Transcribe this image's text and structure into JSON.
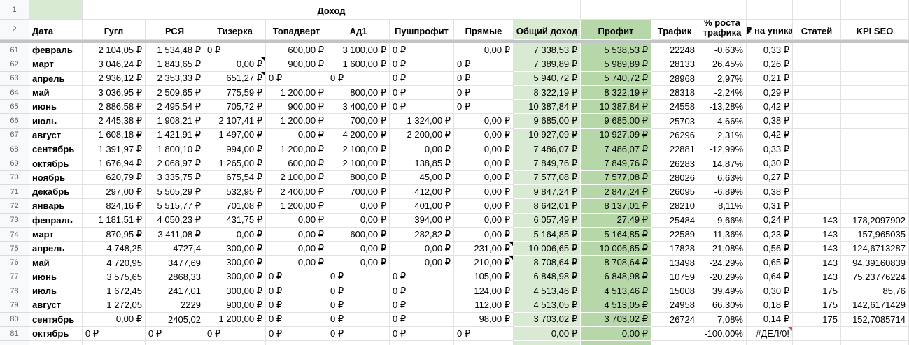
{
  "gutter": {
    "r1": "1",
    "r2": "2"
  },
  "title_row": {
    "income_group_label": "Доход"
  },
  "colors": {
    "total_income_bg": "#d9ead3",
    "profit_bg": "#b6d7a8",
    "note_marker": "#000000",
    "error_note_marker": "#dc4c3f"
  },
  "columns": [
    {
      "id": "data",
      "label": "Дата"
    },
    {
      "id": "google",
      "label": "Гугл"
    },
    {
      "id": "rsya",
      "label": "РСЯ"
    },
    {
      "id": "tizerka",
      "label": "Тизерка"
    },
    {
      "id": "topadvert",
      "label": "Топадверт"
    },
    {
      "id": "ad1",
      "label": "Ад1"
    },
    {
      "id": "pushprofit",
      "label": "Пушпрофит"
    },
    {
      "id": "pryamye",
      "label": "Прямые"
    },
    {
      "id": "obshiy-dohod",
      "label": "Общий доход"
    },
    {
      "id": "profit",
      "label": "Профит"
    },
    {
      "id": "trafik",
      "label": "Трафик"
    },
    {
      "id": "rost-trafika",
      "label": "% роста трафика"
    },
    {
      "id": "rub-na-unika",
      "label": "₽ на уника"
    },
    {
      "id": "statey",
      "label": "Статей"
    },
    {
      "id": "kpi-seo",
      "label": "KPI SEO"
    }
  ],
  "rows": [
    {
      "num": "61",
      "cells": [
        "февраль",
        "2 104,05 ₽",
        "1 534,48 ₽",
        {
          "v": "0 ₽",
          "align": "left"
        },
        "600,00 ₽",
        "3 100,00 ₽",
        {
          "v": "0 ₽",
          "align": "left"
        },
        "0,00 ₽",
        "7 338,53 ₽",
        "5 538,53 ₽",
        "22248",
        "-0,63%",
        "0,33 ₽",
        "",
        ""
      ]
    },
    {
      "num": "62",
      "cells": [
        "март",
        "3 046,24 ₽",
        "1 843,65 ₽",
        {
          "v": "0,00 ₽",
          "note": "black"
        },
        "900,00 ₽",
        "1 600,00 ₽",
        {
          "v": "0 ₽",
          "align": "left"
        },
        {
          "v": "0 ₽",
          "align": "left"
        },
        "7 389,89 ₽",
        "5 989,89 ₽",
        "28133",
        "26,45%",
        "0,26 ₽",
        "",
        ""
      ]
    },
    {
      "num": "63",
      "cells": [
        "апрель",
        "2 936,12 ₽",
        "2 353,33 ₽",
        {
          "v": "651,27 ₽",
          "note": "black"
        },
        {
          "v": "0 ₽",
          "align": "left"
        },
        {
          "v": "0 ₽",
          "align": "left"
        },
        {
          "v": "0 ₽",
          "align": "left"
        },
        {
          "v": "0 ₽",
          "align": "left"
        },
        "5 940,72 ₽",
        "5 740,72 ₽",
        "28968",
        "2,97%",
        "0,21 ₽",
        "",
        ""
      ]
    },
    {
      "num": "64",
      "cells": [
        "май",
        "3 036,95 ₽",
        "2 509,65 ₽",
        "775,59 ₽",
        "1 200,00 ₽",
        "800,00 ₽",
        {
          "v": "0 ₽",
          "align": "left"
        },
        {
          "v": "0 ₽",
          "align": "left"
        },
        "8 322,19 ₽",
        "8 322,19 ₽",
        "28318",
        "-2,24%",
        "0,29 ₽",
        "",
        ""
      ]
    },
    {
      "num": "65",
      "cells": [
        "июнь",
        "2 886,58 ₽",
        "2 495,54 ₽",
        "705,72 ₽",
        "900,00 ₽",
        "3 400,00 ₽",
        {
          "v": "0 ₽",
          "align": "left"
        },
        {
          "v": "0 ₽",
          "align": "left"
        },
        "10 387,84 ₽",
        "10 387,84 ₽",
        "24558",
        "-13,28%",
        "0,42 ₽",
        "",
        ""
      ]
    },
    {
      "num": "66",
      "cells": [
        "июль",
        "2 445,38 ₽",
        "1 908,21 ₽",
        "2 107,41 ₽",
        "1 200,00 ₽",
        "700,00 ₽",
        "1 324,00 ₽",
        "0,00 ₽",
        "9 685,00 ₽",
        "9 685,00 ₽",
        "25703",
        "4,66%",
        "0,38 ₽",
        "",
        ""
      ]
    },
    {
      "num": "67",
      "cells": [
        "август",
        "1 608,18 ₽",
        "1 421,91 ₽",
        "1 497,00 ₽",
        "0,00 ₽",
        "4 200,00 ₽",
        "2 200,00 ₽",
        "0,00 ₽",
        "10 927,09 ₽",
        "10 927,09 ₽",
        "26296",
        "2,31%",
        "0,42 ₽",
        "",
        ""
      ]
    },
    {
      "num": "68",
      "cells": [
        "сентябрь",
        "1 391,97 ₽",
        "1 800,10 ₽",
        "994,00 ₽",
        "1 200,00 ₽",
        "2 100,00 ₽",
        "0,00 ₽",
        "0,00 ₽",
        "7 486,07 ₽",
        "7 486,07 ₽",
        "22881",
        "-12,99%",
        "0,33 ₽",
        "",
        ""
      ]
    },
    {
      "num": "69",
      "cells": [
        "октябрь",
        "1 676,94 ₽",
        "2 068,97 ₽",
        "1 265,00 ₽",
        "600,00 ₽",
        "2 100,00 ₽",
        "138,85 ₽",
        "0,00 ₽",
        "7 849,76 ₽",
        "7 849,76 ₽",
        "26283",
        "14,87%",
        "0,30 ₽",
        "",
        ""
      ]
    },
    {
      "num": "70",
      "cells": [
        "ноябрь",
        "620,79 ₽",
        "3 335,75 ₽",
        "675,54 ₽",
        "2 100,00 ₽",
        "800,00 ₽",
        "45,00 ₽",
        "0,00 ₽",
        "7 577,08 ₽",
        "7 577,08 ₽",
        "28026",
        "6,63%",
        "0,27 ₽",
        "",
        ""
      ]
    },
    {
      "num": "71",
      "cells": [
        "декабрь",
        "297,00 ₽",
        "5 505,29 ₽",
        "532,95 ₽",
        "2 400,00 ₽",
        "700,00 ₽",
        "412,00 ₽",
        "0,00 ₽",
        "9 847,24 ₽",
        "2 847,24 ₽",
        "26095",
        "-6,89%",
        "0,38 ₽",
        "",
        ""
      ]
    },
    {
      "num": "72",
      "cells": [
        "январь",
        "824,16 ₽",
        "5 515,77 ₽",
        "701,08 ₽",
        "1 200,00 ₽",
        "0,00 ₽",
        "401,00 ₽",
        "0,00 ₽",
        "8 642,01 ₽",
        "8 137,01 ₽",
        "28210",
        "8,11%",
        "0,31 ₽",
        "",
        ""
      ]
    },
    {
      "num": "73",
      "cells": [
        "февраль",
        "1 181,51 ₽",
        "4 050,23 ₽",
        "431,75 ₽",
        "0,00 ₽",
        "0,00 ₽",
        "394,00 ₽",
        "0,00 ₽",
        "6 057,49 ₽",
        "27,49 ₽",
        "25484",
        "-9,66%",
        "0,24 ₽",
        "143",
        "178,2097902"
      ]
    },
    {
      "num": "74",
      "cells": [
        "март",
        "870,95 ₽",
        "3 411,08 ₽",
        "0,00 ₽",
        "0,00 ₽",
        "600,00 ₽",
        "282,82 ₽",
        "0,00 ₽",
        "5 164,85 ₽",
        "5 164,85 ₽",
        "22589",
        "-11,36%",
        "0,23 ₽",
        "143",
        "157,965035"
      ]
    },
    {
      "num": "75",
      "cells": [
        "апрель",
        "4 748,25",
        "4727,4",
        "300,00 ₽",
        "0,00 ₽",
        "0,00 ₽",
        "0,00 ₽",
        {
          "v": "231,00 ₽",
          "note": "black"
        },
        "10 006,65 ₽",
        "10 006,65 ₽",
        "17828",
        "-21,08%",
        "0,56 ₽",
        "143",
        "124,6713287"
      ]
    },
    {
      "num": "76",
      "cells": [
        "май",
        "4 720,95",
        "3477,69",
        "300,00 ₽",
        "0,00 ₽",
        "0,00 ₽",
        "0,00 ₽",
        {
          "v": "210,00 ₽",
          "note": "black"
        },
        "8 708,64 ₽",
        "8 708,64 ₽",
        "13498",
        "-24,29%",
        "0,65 ₽",
        "143",
        "94,39160839"
      ]
    },
    {
      "num": "77",
      "cells": [
        "июнь",
        "3 575,65",
        "2868,33",
        "300,00 ₽",
        {
          "v": "0 ₽",
          "align": "left"
        },
        {
          "v": "0 ₽",
          "align": "left"
        },
        {
          "v": "0 ₽",
          "align": "left"
        },
        "105,00 ₽",
        "6 848,98 ₽",
        "6 848,98 ₽",
        "10759",
        "-20,29%",
        "0,64 ₽",
        "143",
        "75,23776224"
      ]
    },
    {
      "num": "78",
      "cells": [
        "июль",
        "1 672,45",
        "2417,01",
        "300,00 ₽",
        {
          "v": "0 ₽",
          "align": "left"
        },
        {
          "v": "0 ₽",
          "align": "left"
        },
        {
          "v": "0 ₽",
          "align": "left"
        },
        "124,00 ₽",
        "4 513,46 ₽",
        "4 513,46 ₽",
        "15008",
        "39,49%",
        "0,30 ₽",
        "175",
        "85,76"
      ]
    },
    {
      "num": "79",
      "cells": [
        "август",
        "1 272,05",
        "2229",
        "900,00 ₽",
        {
          "v": "0 ₽",
          "align": "left"
        },
        {
          "v": "0 ₽",
          "align": "left"
        },
        {
          "v": "0 ₽",
          "align": "left"
        },
        "112,00 ₽",
        "4 513,05 ₽",
        "4 513,05 ₽",
        "24958",
        "66,30%",
        "0,18 ₽",
        "175",
        "142,6171429"
      ]
    },
    {
      "num": "80",
      "cells": [
        "сентябрь",
        "0,00 ₽",
        "2405,02",
        "1 200,00 ₽",
        {
          "v": "0 ₽",
          "align": "left"
        },
        {
          "v": "0 ₽",
          "align": "left"
        },
        {
          "v": "0 ₽",
          "align": "left"
        },
        "98,00 ₽",
        "3 703,02 ₽",
        "3 703,02 ₽",
        "26724",
        "7,08%",
        "0,14 ₽",
        "175",
        "152,7085714"
      ]
    },
    {
      "num": "81",
      "cells": [
        "октябрь",
        {
          "v": "0 ₽",
          "align": "left"
        },
        {
          "v": "0 ₽",
          "align": "left"
        },
        {
          "v": "0 ₽",
          "align": "left"
        },
        {
          "v": "0 ₽",
          "align": "left"
        },
        {
          "v": "0 ₽",
          "align": "left"
        },
        {
          "v": "0 ₽",
          "align": "left"
        },
        {
          "v": "0 ₽",
          "align": "left"
        },
        "0,00 ₽",
        "0,00 ₽",
        "",
        "-100,00%",
        {
          "v": "#ДЕЛ/0!",
          "note": "red"
        },
        "",
        ""
      ]
    }
  ]
}
